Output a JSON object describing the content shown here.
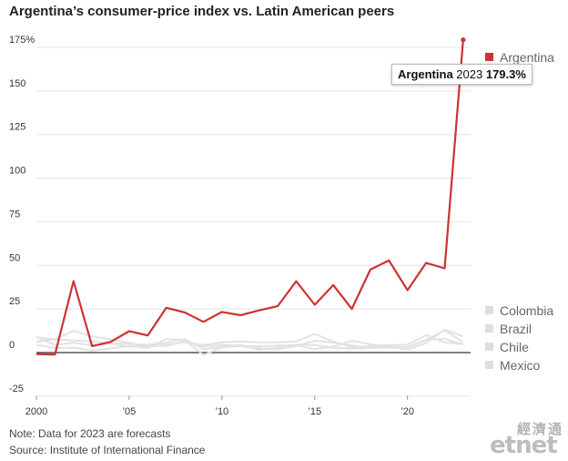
{
  "chart_data": {
    "type": "line",
    "title": "Argentina’s consumer-price index vs. Latin American peers",
    "x": [
      2000,
      2001,
      2002,
      2003,
      2004,
      2005,
      2006,
      2007,
      2008,
      2009,
      2010,
      2011,
      2012,
      2013,
      2014,
      2015,
      2016,
      2017,
      2018,
      2019,
      2020,
      2021,
      2022,
      2023
    ],
    "xticks": [
      2000,
      2005,
      2010,
      2015,
      2020
    ],
    "xtick_labels": [
      "2000",
      "’05",
      "’10",
      "’15",
      "’20"
    ],
    "yticks": [
      -25,
      0,
      25,
      50,
      75,
      100,
      125,
      150,
      175
    ],
    "ytick_labels": [
      "-25",
      "0",
      "25",
      "50",
      "75",
      "100",
      "125",
      "150",
      "175%"
    ],
    "ylim": [
      -25,
      185
    ],
    "xlim": [
      2000,
      2023.4
    ],
    "grid": true,
    "legend_position": "right",
    "series": [
      {
        "name": "Argentina",
        "color": "#cc3333",
        "values": [
          -0.9,
          -1.1,
          41.0,
          3.7,
          6.1,
          12.3,
          9.8,
          25.7,
          23.0,
          17.6,
          23.3,
          21.4,
          24.2,
          26.6,
          40.9,
          27.4,
          38.7,
          25.0,
          47.6,
          52.8,
          35.8,
          51.4,
          48.3,
          179.3
        ]
      },
      {
        "name": "Colombia",
        "color": "#e2e2e2",
        "values": [
          8.8,
          7.6,
          7.0,
          6.5,
          5.5,
          4.9,
          4.5,
          5.7,
          7.7,
          2.0,
          3.2,
          3.7,
          2.4,
          1.9,
          3.7,
          6.8,
          5.7,
          4.1,
          3.1,
          3.8,
          1.6,
          5.6,
          13.1,
          9.3
        ]
      },
      {
        "name": "Brazil",
        "color": "#e2e2e2",
        "values": [
          6.0,
          7.7,
          12.5,
          9.3,
          7.6,
          5.7,
          3.1,
          4.5,
          5.9,
          4.3,
          5.9,
          6.5,
          5.8,
          5.9,
          6.4,
          10.7,
          6.3,
          2.9,
          3.7,
          4.3,
          4.5,
          10.1,
          5.8,
          4.8
        ]
      },
      {
        "name": "Chile",
        "color": "#e2e2e2",
        "values": [
          4.5,
          2.6,
          2.8,
          1.1,
          2.4,
          3.7,
          2.6,
          7.8,
          7.1,
          -1.4,
          3.0,
          4.4,
          1.5,
          3.0,
          4.6,
          4.4,
          2.7,
          2.3,
          2.6,
          3.0,
          3.0,
          7.2,
          12.8,
          6.0
        ]
      },
      {
        "name": "Mexico",
        "color": "#e2e2e2",
        "values": [
          9.0,
          4.4,
          5.7,
          4.0,
          5.2,
          3.3,
          4.1,
          3.8,
          6.5,
          3.6,
          4.4,
          3.8,
          3.6,
          4.0,
          4.1,
          2.1,
          3.4,
          6.8,
          4.8,
          2.8,
          3.2,
          7.4,
          7.8,
          4.7
        ]
      }
    ],
    "highlight": {
      "series": "Argentina",
      "year_label": "2023",
      "value_label": "179.3%"
    }
  },
  "note": "Note: Data for 2023 are forecasts",
  "source": "Source: Institute of International Finance",
  "watermark": {
    "cn": "經濟通",
    "logo": "etnet"
  }
}
